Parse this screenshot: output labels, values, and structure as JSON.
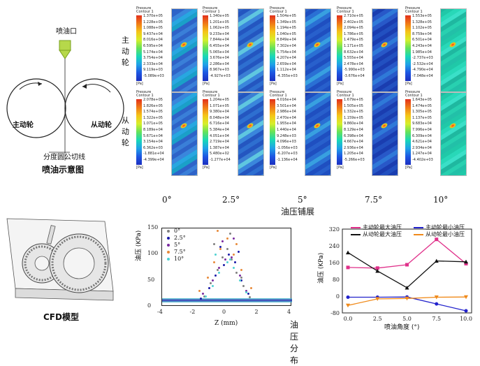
{
  "diagram": {
    "nozzle_label": "喷油口",
    "drive_wheel_label": "主动轮",
    "driven_wheel_label": "从动轮",
    "pitch_line_label": "分度圆公切线",
    "schematic_caption": "喷油示意图"
  },
  "contours": {
    "row_labels": [
      "主动轮",
      "从动轮"
    ],
    "legend_title_line1": "Pressure",
    "legend_title_line2": "Contour 1",
    "unit": "[Pa]",
    "panels": [
      {
        "row": 0,
        "values": [
          "1.370e+05",
          "1.228e+05",
          "1.088e+05",
          "9.437e+04",
          "8.016e+04",
          "6.595e+04",
          "5.174e+04",
          "3.754e+04",
          "2.333e+04",
          "9.119e+03",
          "-5.089e+03"
        ]
      },
      {
        "row": 0,
        "values": [
          "1.340e+05",
          "1.201e+05",
          "1.062e+05",
          "9.233e+04",
          "7.844e+04",
          "6.455e+04",
          "5.065e+04",
          "3.676e+04",
          "2.286e+04",
          "8.967e+03",
          "-4.927e+03"
        ]
      },
      {
        "row": 0,
        "values": [
          "1.504e+05",
          "1.349e+05",
          "1.194e+05",
          "1.040e+05",
          "8.849e+04",
          "7.302e+04",
          "5.754e+04",
          "4.207e+04",
          "2.659e+04",
          "1.112e+04",
          "-4.355e+03"
        ]
      },
      {
        "row": 0,
        "values": [
          "2.710e+05",
          "2.402e+05",
          "2.094e+05",
          "1.786e+05",
          "1.479e+05",
          "1.171e+05",
          "8.632e+04",
          "5.555e+04",
          "2.478e+04",
          "-5.990e+03",
          "-3.676e+04"
        ]
      },
      {
        "row": 0,
        "values": [
          "1.553e+05",
          "1.328e+05",
          "1.102e+05",
          "8.759e+04",
          "6.501e+04",
          "4.243e+04",
          "1.985e+04",
          "-2.737e+03",
          "-2.532e+04",
          "-4.790e+04",
          "-7.048e+04"
        ]
      },
      {
        "row": 1,
        "values": [
          "2.078e+05",
          "1.826e+05",
          "1.574e+05",
          "1.322e+05",
          "1.071e+05",
          "8.189e+04",
          "5.671e+04",
          "3.154e+04",
          "6.362e+03",
          "-1.881e+04",
          "-4.399e+04"
        ]
      },
      {
        "row": 1,
        "values": [
          "1.204e+05",
          "1.071e+05",
          "9.380e+04",
          "8.048e+04",
          "6.716e+04",
          "5.384e+04",
          "4.051e+04",
          "2.719e+04",
          "1.387e+04",
          "5.480e+02",
          "-1.277e+04"
        ]
      },
      {
        "row": 1,
        "values": [
          "4.016e+04",
          "3.501e+04",
          "2.986e+04",
          "2.470e+04",
          "1.955e+04",
          "1.440e+04",
          "9.248e+03",
          "4.096e+03",
          "-1.056e+03",
          "-6.207e+03",
          "-1.136e+04"
        ]
      },
      {
        "row": 1,
        "values": [
          "1.679e+05",
          "1.505e+05",
          "1.332e+05",
          "1.159e+05",
          "9.860e+04",
          "8.129e+04",
          "6.398e+04",
          "4.667e+04",
          "2.936e+04",
          "1.205e+04",
          "-5.266e+03"
        ]
      },
      {
        "row": 1,
        "values": [
          "1.643e+05",
          "1.474e+05",
          "1.305e+05",
          "1.137e+05",
          "9.683e+04",
          "7.996e+04",
          "6.309e+04",
          "4.621e+04",
          "2.934e+04",
          "1.247e+04",
          "-4.402e+03"
        ]
      }
    ],
    "angles": [
      "0°",
      "2.5°",
      "5°",
      "7.5°",
      "10°"
    ],
    "caption": "油压铺展"
  },
  "cfd": {
    "caption": "CFD模型"
  },
  "chart_data": [
    {
      "type": "scatter",
      "xlabel": "Z (mm)",
      "ylabel": "油压 (KPa)",
      "xlim": [
        -4,
        4
      ],
      "ylim": [
        0,
        150
      ],
      "xticks": [
        "-4",
        "-2",
        "0",
        "2",
        "4"
      ],
      "yticks": [
        "0",
        "50",
        "100",
        "150"
      ],
      "legend": "top-left",
      "series": [
        {
          "name": "0°",
          "color": "#808080",
          "x": [
            -1.4,
            -1.0,
            -0.6,
            -0.3,
            0.0,
            0.3,
            0.6,
            1.0,
            1.4,
            -0.8,
            0.2,
            0.9
          ],
          "y": [
            20,
            45,
            70,
            95,
            110,
            90,
            65,
            40,
            18,
            120,
            140,
            55
          ]
        },
        {
          "name": "2.5°",
          "color": "#1a1aa8",
          "x": [
            -1.6,
            -1.1,
            -0.7,
            -0.2,
            0.1,
            0.5,
            0.9,
            1.3,
            -0.4,
            0.7
          ],
          "y": [
            15,
            35,
            60,
            80,
            100,
            85,
            50,
            25,
            115,
            105
          ]
        },
        {
          "name": "5°",
          "color": "#7a2aa0",
          "x": [
            -1.5,
            -0.9,
            -0.5,
            -0.1,
            0.3,
            0.8,
            1.2,
            -0.3,
            0.4
          ],
          "y": [
            25,
            50,
            75,
            90,
            95,
            60,
            30,
            125,
            130
          ]
        },
        {
          "name": "7.5°",
          "color": "#e88a3a",
          "x": [
            -1.7,
            -1.2,
            -0.8,
            -0.4,
            0.0,
            0.4,
            0.9,
            1.5,
            -0.6,
            0.6
          ],
          "y": [
            30,
            55,
            85,
            110,
            130,
            100,
            70,
            35,
            145,
            120
          ]
        },
        {
          "name": "10°",
          "color": "#4fd2d2",
          "x": [
            -1.3,
            -0.9,
            -0.5,
            0.0,
            0.4,
            0.8,
            1.2,
            -0.7,
            0.2
          ],
          "y": [
            20,
            40,
            65,
            85,
            75,
            50,
            28,
            100,
            90
          ]
        }
      ],
      "caption": "油压分布"
    },
    {
      "type": "line",
      "xlabel": "喷油角度 (°)",
      "ylabel": "油压 (KPa)",
      "x": [
        0.0,
        2.5,
        5.0,
        7.5,
        10.0
      ],
      "xticks": [
        "0.0",
        "2.5",
        "5.0",
        "7.5",
        "10.0"
      ],
      "ylim": [
        -80,
        320
      ],
      "yticks": [
        "-80",
        "0",
        "80",
        "160",
        "240",
        "320"
      ],
      "legend": "top",
      "series": [
        {
          "name": "主动轮最大油压",
          "color": "#e0308a",
          "marker": "square",
          "values": [
            137,
            134,
            150,
            271,
            155
          ]
        },
        {
          "name": "主动轮最小油压",
          "color": "#2222cc",
          "marker": "circle",
          "values": [
            -5,
            -5,
            -4,
            -37,
            -70
          ]
        },
        {
          "name": "从动轮最大油压",
          "color": "#111111",
          "marker": "triangle",
          "values": [
            208,
            120,
            40,
            168,
            164
          ]
        },
        {
          "name": "从动轮最小油压",
          "color": "#f08a1a",
          "marker": "triangle-down",
          "values": [
            -44,
            -13,
            -11,
            -5,
            -4
          ]
        }
      ]
    }
  ]
}
